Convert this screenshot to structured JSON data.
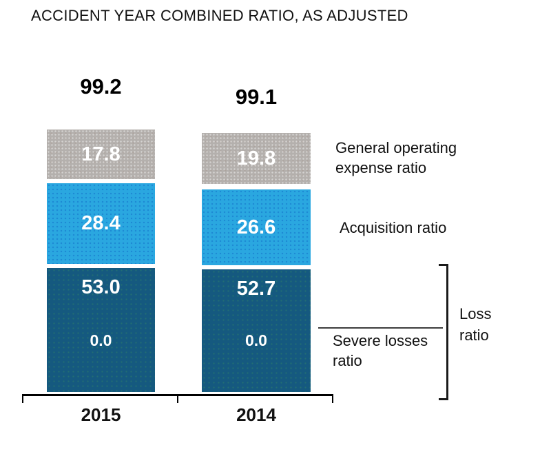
{
  "title": "ACCIDENT YEAR COMBINED RATIO, AS ADJUSTED",
  "chart_data": {
    "type": "bar",
    "stacked": true,
    "title": "ACCIDENT YEAR COMBINED RATIO, AS ADJUSTED",
    "categories": [
      "2015",
      "2014"
    ],
    "bar_totals": [
      99.2,
      99.1
    ],
    "series": [
      {
        "name": "General operating expense ratio",
        "values": [
          17.8,
          19.8
        ],
        "color": "#b4b0ad"
      },
      {
        "name": "Acquisition ratio",
        "values": [
          28.4,
          26.6
        ],
        "color": "#2aa7e0"
      },
      {
        "name": "Loss ratio",
        "values": [
          53.0,
          52.7
        ],
        "color": "#15597f"
      },
      {
        "name": "Severe losses ratio",
        "values": [
          0.0,
          0.0
        ],
        "color": "#15597f"
      }
    ],
    "grid": false,
    "y_axis_visible": false,
    "x_axis_visible": true,
    "legend_position": "right-annotations",
    "notes": "Loss ratio bracket groups the dark blue segment (attritional loss + severe losses 0.0)"
  },
  "bars": [
    {
      "year": "2015",
      "total": "99.2",
      "segments": {
        "gray": "17.8",
        "lightblue": "28.4",
        "darkblue": "53.0",
        "severe": "0.0"
      }
    },
    {
      "year": "2014",
      "total": "99.1",
      "segments": {
        "gray": "19.8",
        "lightblue": "26.6",
        "darkblue": "52.7",
        "severe": "0.0"
      }
    }
  ],
  "annotations": {
    "general_operating": {
      "line1": "General operating",
      "line2": "expense ratio"
    },
    "acquisition": "Acquisition ratio",
    "severe_losses": {
      "line1": "Severe losses",
      "line2": "ratio"
    },
    "loss_ratio": {
      "line1": "Loss",
      "line2": "ratio"
    }
  },
  "colors": {
    "gray_segment": "#b4b0ad",
    "light_blue_segment": "#2aa7e0",
    "dark_blue_segment": "#15597f",
    "value_text": "#ffffff",
    "axis": "#000000"
  }
}
